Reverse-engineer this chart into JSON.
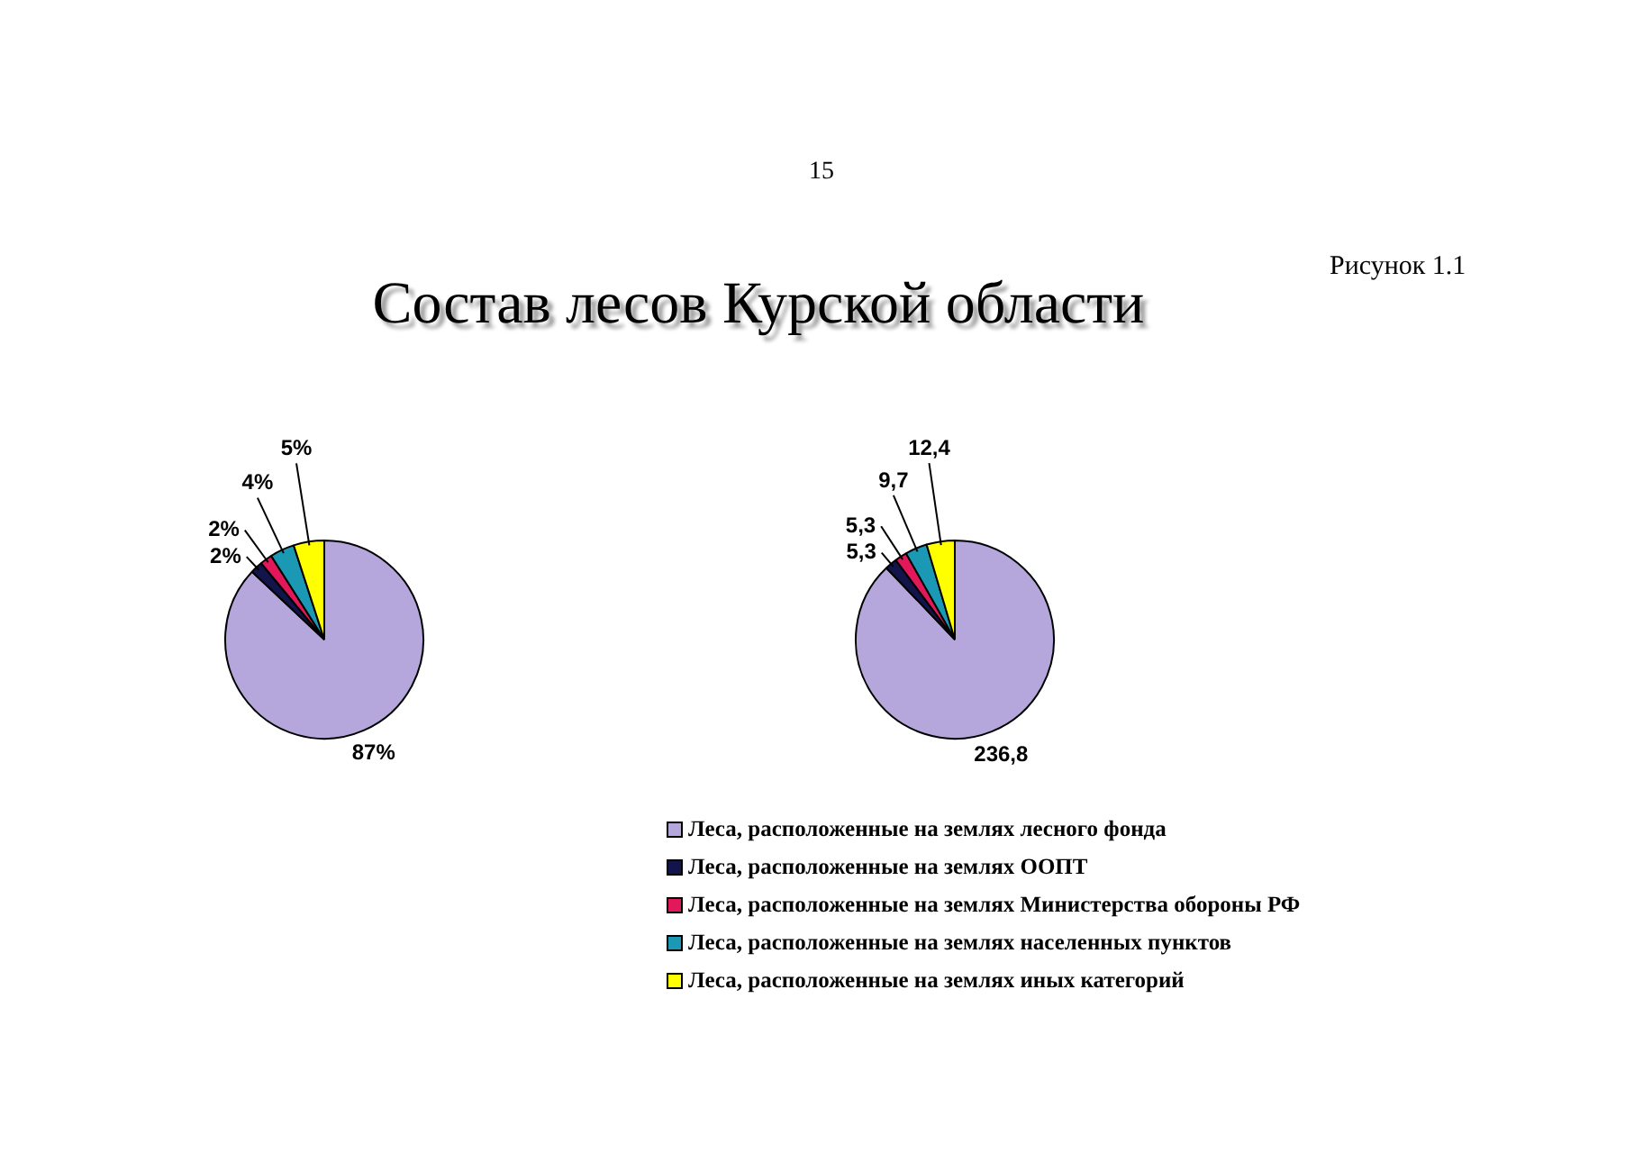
{
  "chart_data": {
    "type": "pie",
    "title": "Состав лесов Курской области",
    "categories": [
      "Леса, расположенные на землях лесного фонда",
      "Леса, расположенные на землях ООПТ",
      "Леса, расположенные на землях Министерства обороны РФ",
      "Леса, расположенные на землях населенных пунктов",
      "Леса, расположенные на землях иных категорий"
    ],
    "colors": [
      "#b5a6dc",
      "#14144c",
      "#e2185a",
      "#1b98b4",
      "#ffff00"
    ],
    "series": [
      {
        "values": [
          87,
          2,
          2,
          4,
          5
        ],
        "value_labels": [
          "87%",
          "2%",
          "2%",
          "4%",
          "5%"
        ]
      },
      {
        "values": [
          236.8,
          5.3,
          5.3,
          9.7,
          12.4
        ],
        "value_labels": [
          "236,8",
          "5,3",
          "5,3",
          "9,7",
          "12,4"
        ]
      }
    ],
    "legend": "bottom",
    "annotations": [
      "15",
      "Рисунок 1.1"
    ]
  }
}
